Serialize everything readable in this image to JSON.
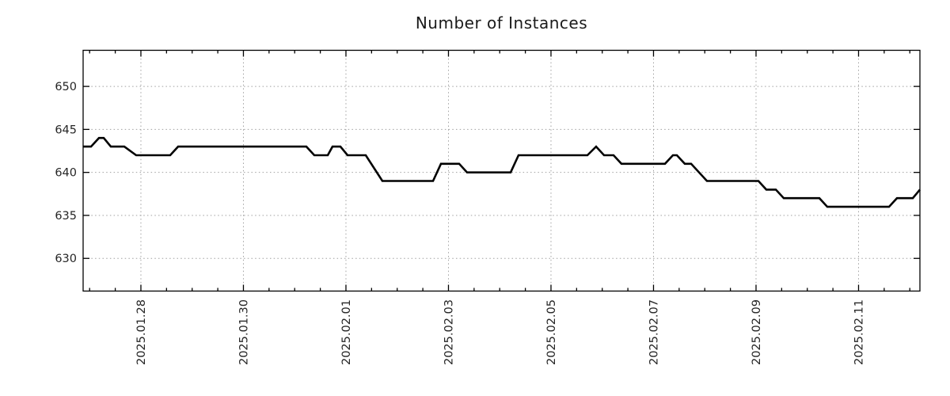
{
  "page": {
    "background": "#ffffff"
  },
  "chart_data": {
    "type": "line",
    "title": "Number of Instances",
    "xlabel": "",
    "ylabel": "",
    "legend": "none",
    "grid": {
      "style": "dotted",
      "color": "#a0a0a0",
      "major_only": true
    },
    "frame_color": "#000000",
    "tick_label_color": "#262626",
    "x_axis": {
      "tick_labels": [
        "2025.01.28",
        "2025.01.30",
        "2025.02.01",
        "2025.02.03",
        "2025.02.05",
        "2025.02.07",
        "2025.02.09",
        "2025.02.11"
      ],
      "tick_positions_days": [
        1.127,
        3.127,
        5.127,
        7.127,
        9.127,
        11.127,
        13.127,
        15.127
      ],
      "minor_tick_start_day": 0.127,
      "minor_tick_step_days": 0.5,
      "range_days": [
        0,
        16.324
      ],
      "labels_rotated_degrees": 90
    },
    "y_axis": {
      "ticks": [
        630,
        635,
        640,
        645,
        650
      ],
      "range": [
        626.2,
        654.2
      ]
    },
    "series": [
      {
        "name": "instances",
        "color": "#000000",
        "line_width": 2.6,
        "points_day_value": [
          [
            0.0,
            643
          ],
          [
            0.154,
            643
          ],
          [
            0.309,
            644
          ],
          [
            0.402,
            644
          ],
          [
            0.541,
            643
          ],
          [
            0.803,
            643
          ],
          [
            1.035,
            642
          ],
          [
            1.699,
            642
          ],
          [
            1.853,
            643
          ],
          [
            4.355,
            643
          ],
          [
            4.51,
            642
          ],
          [
            4.772,
            642
          ],
          [
            4.865,
            643
          ],
          [
            5.019,
            643
          ],
          [
            5.158,
            642
          ],
          [
            5.514,
            642
          ],
          [
            5.838,
            639
          ],
          [
            6.826,
            639
          ],
          [
            6.981,
            641
          ],
          [
            7.336,
            641
          ],
          [
            7.49,
            640
          ],
          [
            8.34,
            640
          ],
          [
            8.494,
            642
          ],
          [
            9.838,
            642
          ],
          [
            10.008,
            643
          ],
          [
            10.162,
            642
          ],
          [
            10.347,
            642
          ],
          [
            10.502,
            641
          ],
          [
            11.351,
            641
          ],
          [
            11.506,
            642
          ],
          [
            11.583,
            642
          ],
          [
            11.737,
            641
          ],
          [
            11.861,
            641
          ],
          [
            12.17,
            639
          ],
          [
            13.174,
            639
          ],
          [
            13.328,
            638
          ],
          [
            13.514,
            638
          ],
          [
            13.668,
            637
          ],
          [
            14.363,
            637
          ],
          [
            14.517,
            636
          ],
          [
            15.722,
            636
          ],
          [
            15.876,
            637
          ],
          [
            16.185,
            637
          ],
          [
            16.324,
            638
          ]
        ]
      }
    ]
  }
}
